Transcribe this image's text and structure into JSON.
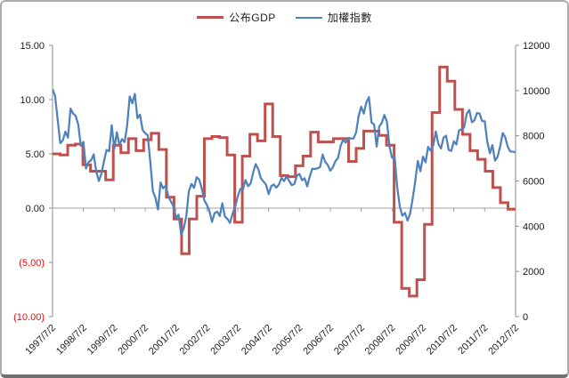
{
  "chart_data": {
    "type": "line",
    "title": "",
    "legend_position": "top",
    "grid": "zero-line-only",
    "x_label_rotation": -45,
    "x_tick_labels": [
      "1997/7/2",
      "1998/7/2",
      "1999/7/2",
      "2000/7/2",
      "2001/7/2",
      "2002/7/2",
      "2003/7/2",
      "2004/7/2",
      "2005/7/2",
      "2006/7/2",
      "2007/7/2",
      "2008/7/2",
      "2009/7/2",
      "2010/7/2",
      "2011/7/2",
      "2012/7/2"
    ],
    "y_axis_left": {
      "tick_labels": [
        "15.00",
        "10.00",
        "5.00",
        "0.00",
        "(5.00)",
        "(10.00)"
      ],
      "tick_values": [
        15,
        10,
        5,
        0,
        -5,
        -10
      ],
      "range": [
        -10,
        15
      ],
      "label_color": "#1a1a1a",
      "negative_label_color": "#ff0000"
    },
    "y_axis_right": {
      "tick_labels": [
        "12000",
        "10000",
        "8000",
        "6000",
        "4000",
        "2000",
        "0"
      ],
      "tick_values": [
        12000,
        10000,
        8000,
        6000,
        4000,
        2000,
        0
      ],
      "range": [
        0,
        12000
      ],
      "label_color": "#1a1a1a"
    },
    "axis_color": "#8c8c8c",
    "zero_line_color": "#a0a0a0",
    "series": [
      {
        "name": "公布GDP",
        "axis": "left",
        "line_type": "step",
        "color": "#c0504d",
        "stroke_width": 3,
        "first_point": "1997/7",
        "points_per_year": 4,
        "values": [
          5.0,
          4.9,
          5.8,
          5.9,
          4.0,
          3.4,
          3.4,
          2.6,
          5.8,
          5.1,
          6.4,
          5.3,
          6.3,
          6.9,
          5.4,
          1.0,
          -1.0,
          -4.2,
          -1.0,
          1.1,
          6.4,
          6.6,
          6.5,
          4.9,
          -1.3,
          4.8,
          6.8,
          6.2,
          9.6,
          6.6,
          3.0,
          2.9,
          3.9,
          4.8,
          7.0,
          6.1,
          6.1,
          6.4,
          6.4,
          4.3,
          5.5,
          7.1,
          7.1,
          6.7,
          5.8,
          -1.3,
          -7.4,
          -8.1,
          -6.6,
          -1.5,
          8.8,
          13.0,
          11.7,
          9.1,
          6.8,
          5.3,
          4.5,
          3.4,
          1.9,
          0.5,
          -0.1
        ]
      },
      {
        "name": "加權指數",
        "axis": "right",
        "line_type": "line",
        "color": "#4f81bd",
        "stroke_width": 2.25,
        "first_point": "1997/7",
        "points_per_year": 12,
        "values": [
          10066,
          9757,
          8708,
          7675,
          7797,
          8187,
          7915,
          9202,
          8983,
          8877,
          8491,
          7548,
          7731,
          6550,
          6833,
          6918,
          7177,
          6418,
          5998,
          6318,
          6881,
          7371,
          7316,
          8467,
          7427,
          8157,
          7598,
          7854,
          7720,
          8448,
          9744,
          9435,
          9854,
          8777,
          8939,
          8265,
          8114,
          8029,
          6841,
          5544,
          5256,
          4739,
          5936,
          5674,
          5797,
          5323,
          5100,
          4883,
          4380,
          4509,
          3636,
          3903,
          4441,
          5551,
          5872,
          5696,
          6167,
          6065,
          5675,
          5153,
          4944,
          4664,
          4191,
          4579,
          4646,
          4452,
          5015,
          4432,
          4321,
          4148,
          4555,
          4872,
          5318,
          5650,
          5611,
          6045,
          5771,
          5890,
          6375,
          6750,
          6522,
          6117,
          5977,
          5839,
          5420,
          5765,
          5845,
          5705,
          5844,
          6139,
          5994,
          6207,
          6005,
          5818,
          5867,
          6241,
          6312,
          6033,
          6118,
          5764,
          6203,
          6548,
          6532,
          6561,
          6614,
          7171,
          6847,
          6704,
          6454,
          6611,
          6884,
          7021,
          7568,
          7824,
          7699,
          7902,
          7884,
          7875,
          8145,
          8883,
          9287,
          8982,
          9476,
          9711,
          8586,
          8506,
          7521,
          8413,
          8573,
          8920,
          8619,
          7524,
          7024,
          7046,
          5719,
          4871,
          4460,
          4591,
          4248,
          4557,
          5210,
          5992,
          6890,
          6432,
          7077,
          6826,
          7509,
          7340,
          7583,
          8188,
          7640,
          7436,
          7920,
          8004,
          7374,
          7329,
          7760,
          7616,
          8237,
          8287,
          8372,
          8973,
          9145,
          8599,
          8683,
          9008,
          8988,
          8652,
          8644,
          7741,
          7225,
          7587,
          6904,
          7072,
          7517,
          8121,
          7933,
          7501,
          7301,
          7296,
          7270
        ]
      }
    ]
  }
}
